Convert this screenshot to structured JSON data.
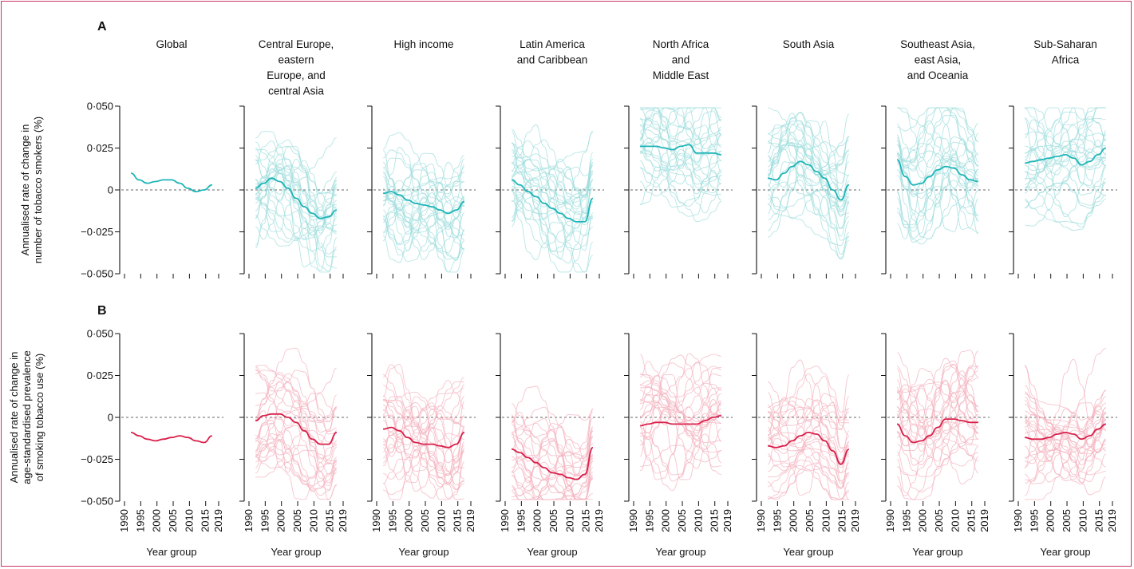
{
  "chart_data": {
    "type": "line",
    "panels": [
      {
        "label": "A",
        "ylabel": [
          "Annualised rate of change in",
          "number of tobacco smokers (%)"
        ],
        "ylim": [
          -0.05,
          0.05
        ],
        "yticks": [
          "0·050",
          "0·025",
          "0",
          "−0·025",
          "−0·050"
        ],
        "accent": "#1fb5b8",
        "faint": "#9fdcdc"
      },
      {
        "label": "B",
        "ylabel": [
          "Annualised rate of change in",
          "age-standardised prevalence",
          "of smoking tobacco use (%)"
        ],
        "ylim": [
          -0.05,
          0.05
        ],
        "yticks": [
          "0·050",
          "0·025",
          "0",
          "−0·025",
          "−0·050"
        ],
        "accent": "#d9204a",
        "faint": "#f3b1bd"
      }
    ],
    "regions": [
      {
        "title": [
          "Global"
        ]
      },
      {
        "title": [
          "Central Europe,",
          "eastern",
          "Europe, and",
          "central Asia"
        ]
      },
      {
        "title": [
          "High income"
        ]
      },
      {
        "title": [
          "Latin America",
          "and Caribbean"
        ]
      },
      {
        "title": [
          "North Africa",
          "and",
          "Middle East"
        ]
      },
      {
        "title": [
          "South Asia"
        ]
      },
      {
        "title": [
          "Southeast Asia,",
          "east Asia,",
          "and Oceania"
        ]
      },
      {
        "title": [
          "Sub-Saharan",
          "Africa"
        ]
      }
    ],
    "x": [
      1992,
      1994.5,
      1997,
      1999.5,
      2002,
      2004.5,
      2007,
      2009.5,
      2012,
      2014.5,
      2017
    ],
    "x_ticks": [
      "1990",
      "1995",
      "2000",
      "2005",
      "2010",
      "2015",
      "2019"
    ],
    "xlabel": "Year group",
    "series_A": [
      [
        0.01,
        0.006,
        0.004,
        0.005,
        0.006,
        0.006,
        0.004,
        0.001,
        -0.001,
        0.0,
        0.003
      ],
      [
        0.001,
        0.004,
        0.007,
        0.005,
        0.001,
        -0.005,
        -0.01,
        -0.014,
        -0.017,
        -0.016,
        -0.012
      ],
      [
        -0.002,
        -0.001,
        -0.003,
        -0.006,
        -0.008,
        -0.009,
        -0.01,
        -0.012,
        -0.014,
        -0.012,
        -0.007
      ],
      [
        0.006,
        0.003,
        -0.001,
        -0.004,
        -0.008,
        -0.011,
        -0.014,
        -0.017,
        -0.019,
        -0.019,
        -0.005
      ],
      [
        0.026,
        0.026,
        0.026,
        0.025,
        0.024,
        0.026,
        0.027,
        0.022,
        0.022,
        0.022,
        0.021
      ],
      [
        0.007,
        0.006,
        0.01,
        0.014,
        0.017,
        0.015,
        0.011,
        0.007,
        0.0,
        -0.006,
        0.003
      ],
      [
        0.018,
        0.008,
        0.003,
        0.004,
        0.008,
        0.012,
        0.014,
        0.013,
        0.009,
        0.006,
        0.005
      ],
      [
        0.016,
        0.017,
        0.018,
        0.019,
        0.02,
        0.021,
        0.019,
        0.015,
        0.017,
        0.021,
        0.025
      ]
    ],
    "series_B": [
      [
        -0.009,
        -0.011,
        -0.013,
        -0.014,
        -0.013,
        -0.012,
        -0.011,
        -0.012,
        -0.014,
        -0.015,
        -0.011
      ],
      [
        -0.002,
        0.001,
        0.002,
        0.002,
        0.0,
        -0.003,
        -0.008,
        -0.013,
        -0.016,
        -0.016,
        -0.009
      ],
      [
        -0.007,
        -0.006,
        -0.008,
        -0.012,
        -0.015,
        -0.016,
        -0.016,
        -0.017,
        -0.018,
        -0.016,
        -0.009
      ],
      [
        -0.019,
        -0.021,
        -0.024,
        -0.027,
        -0.03,
        -0.033,
        -0.034,
        -0.036,
        -0.037,
        -0.034,
        -0.018
      ],
      [
        -0.005,
        -0.004,
        -0.003,
        -0.003,
        -0.004,
        -0.004,
        -0.004,
        -0.004,
        -0.002,
        0.0,
        0.001
      ],
      [
        -0.017,
        -0.018,
        -0.017,
        -0.014,
        -0.011,
        -0.009,
        -0.01,
        -0.014,
        -0.02,
        -0.028,
        -0.019
      ],
      [
        -0.004,
        -0.011,
        -0.015,
        -0.014,
        -0.011,
        -0.006,
        -0.001,
        -0.001,
        -0.002,
        -0.003,
        -0.003
      ],
      [
        -0.012,
        -0.013,
        -0.013,
        -0.012,
        -0.01,
        -0.009,
        -0.01,
        -0.013,
        -0.011,
        -0.007,
        -0.004
      ]
    ]
  }
}
